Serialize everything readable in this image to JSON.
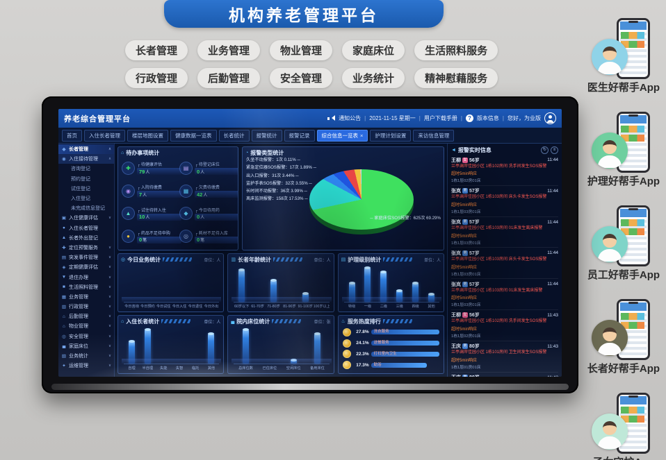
{
  "wall": {
    "banner_title": "机构养老管理平台",
    "pills_row1": [
      "长者管理",
      "业务管理",
      "物业管理",
      "家庭床位",
      "生活照料服务"
    ],
    "pills_row2": [
      "行政管理",
      "后勤管理",
      "安全管理",
      "业务统计",
      "精神慰藉服务"
    ]
  },
  "apps": [
    {
      "label": "医生好帮手App",
      "color": "#8fd3e8"
    },
    {
      "label": "护理好帮手App",
      "color": "#6fcf9f"
    },
    {
      "label": "员工好帮手App",
      "color": "#7fd4c8"
    },
    {
      "label": "长者好帮手App",
      "color": "#6b6a52"
    },
    {
      "label": "子女守护App",
      "color": "#bfe8d8"
    }
  ],
  "screen": {
    "topbar": {
      "title": "养老综合管理平台",
      "notice": "通知公告",
      "date": "2021-11-15 星期一",
      "manual": "用户下载手册",
      "version": "版本信息",
      "greeting": "您好，为业版",
      "sep": "|"
    },
    "tabs": [
      {
        "label": "首页"
      },
      {
        "label": "入住长者管理"
      },
      {
        "label": "楼层地图设置"
      },
      {
        "label": "健康数据一览表"
      },
      {
        "label": "长者统计"
      },
      {
        "label": "报警统计"
      },
      {
        "label": "报警记录"
      },
      {
        "label": "综合信息一览表",
        "active": true
      },
      {
        "label": "护理计划设置"
      },
      {
        "label": "来访信息管理"
      }
    ],
    "sidebar": [
      {
        "label": "长者管理",
        "icon": "◆",
        "type": "section",
        "chev": "∧"
      },
      {
        "label": "入住接待管理",
        "icon": "◉",
        "type": "group hl",
        "chev": "∧"
      },
      {
        "label": "咨询登记",
        "type": "sub"
      },
      {
        "label": "预约登记",
        "type": "sub"
      },
      {
        "label": "试住登记",
        "type": "sub"
      },
      {
        "label": "入住登记",
        "type": "sub"
      },
      {
        "label": "未完成信息登记",
        "type": "sub"
      },
      {
        "label": "入住健康评估",
        "icon": "▣",
        "type": "group",
        "chev": "∨"
      },
      {
        "label": "入住长者管理",
        "icon": "●",
        "type": "group",
        "chev": ""
      },
      {
        "label": "长者外出登记",
        "icon": "▲",
        "type": "group",
        "chev": ""
      },
      {
        "label": "定位预警服务",
        "icon": "✚",
        "type": "group",
        "chev": "∨"
      },
      {
        "label": "突发事件管理",
        "icon": "▤",
        "type": "group",
        "chev": "∨"
      },
      {
        "label": "定期健康评估",
        "icon": "◈",
        "type": "group",
        "chev": "∨"
      },
      {
        "label": "退住办理",
        "icon": "▼",
        "type": "group",
        "chev": "∨"
      },
      {
        "label": "生活照料管理",
        "icon": "■",
        "type": "group",
        "chev": "∨"
      },
      {
        "label": "业务管理",
        "icon": "▦",
        "type": "group",
        "chev": "∨"
      },
      {
        "label": "行政管理",
        "icon": "▥",
        "type": "group",
        "chev": "∨"
      },
      {
        "label": "后勤管理",
        "icon": "⌂",
        "type": "group",
        "chev": "∨"
      },
      {
        "label": "物业管理",
        "icon": "⌂",
        "type": "group",
        "chev": "∨"
      },
      {
        "label": "安全管理",
        "icon": "◎",
        "type": "group",
        "chev": "∨"
      },
      {
        "label": "家庭床位",
        "icon": "▄",
        "type": "group",
        "chev": "∨"
      },
      {
        "label": "业务统计",
        "icon": "▧",
        "type": "group",
        "chev": "∨"
      },
      {
        "label": "运维管理",
        "icon": "✦",
        "type": "group",
        "chev": "∨"
      }
    ],
    "todo_panel": {
      "title": "待办事项统计",
      "items": [
        {
          "icon": "✚",
          "color": "#3ce06a",
          "label": "待健康评估",
          "value": "79",
          "unit": "人"
        },
        {
          "icon": "▤",
          "color": "#bca7f5",
          "label": "待登记床位",
          "value": "0",
          "unit": "人"
        },
        {
          "icon": "◉",
          "color": "#b48ef0",
          "label": "入院待缴费",
          "value": "7",
          "unit": "人"
        },
        {
          "icon": "▦",
          "color": "#58c7f0",
          "label": "欠费待缴费",
          "value": "42",
          "unit": "人"
        },
        {
          "icon": "▲",
          "color": "#58e0c8",
          "label": "试住待转入住",
          "value": "10",
          "unit": "人"
        },
        {
          "icon": "◆",
          "color": "#58c7f0",
          "label": "今日待用药",
          "value": "0",
          "unit": "人"
        },
        {
          "icon": "●",
          "color": "#e8c23c",
          "label": "药品不足待申购",
          "value": "0",
          "unit": "笔"
        },
        {
          "icon": "◎",
          "color": "#9fb6e4",
          "label": "耗材不足待入库",
          "value": "0",
          "unit": "笔"
        }
      ]
    },
    "alarm_feed": {
      "title": "报警实时信息",
      "entries": [
        {
          "name": "王柳",
          "gender": "女",
          "age": "56岁",
          "alert": "兰亭澜岸佳园小区 1栋102房间 洗手间发生SOS报警",
          "sub": "超时5min响应",
          "loc": "1栋1层02房01床",
          "time": "11:44"
        },
        {
          "name": "张岚",
          "gender": "男",
          "age": "57岁",
          "alert": "兰亭澜岸佳园小区 1栋103房间 床头卡发生SOS报警",
          "sub": "超时5min响应",
          "loc": "1栋1层03房01床",
          "time": "11:44"
        },
        {
          "name": "张岚",
          "gender": "男",
          "age": "57岁",
          "alert": "兰亭澜岸佳园小区 1栋103房间 01床发生离床报警",
          "sub": "超时5min响应",
          "loc": "1栋1层03房01床",
          "time": "11:44"
        },
        {
          "name": "张岚",
          "gender": "男",
          "age": "57岁",
          "alert": "兰亭澜岸佳园小区 1栋103房间 床头卡发生SOS报警",
          "sub": "超时5min响应",
          "loc": "1栋1层03房01床",
          "time": "11:44"
        },
        {
          "name": "张岚",
          "gender": "男",
          "age": "57岁",
          "alert": "兰亭澜岸佳园小区 1栋103房间 01床发生离床报警",
          "sub": "超时5min响应",
          "loc": "1栋1层03房01床",
          "time": "11:44"
        },
        {
          "name": "王柳",
          "gender": "女",
          "age": "56岁",
          "alert": "兰亭澜岸佳园小区 1栋102房间 洗手间发生SOS报警",
          "sub": "超时5min响应",
          "loc": "1栋1层02房01床",
          "time": "11:43"
        },
        {
          "name": "王庆",
          "gender": "男",
          "age": "80岁",
          "alert": "兰亭澜岸佳园小区 1栋101房间 卫生间发生SOS报警",
          "sub": "超时5min响应",
          "loc": "1栋1层01房01床",
          "time": "11:43"
        },
        {
          "name": "王庆",
          "gender": "男",
          "age": "80岁",
          "alert": "兰亭澜岸佳园小区 1栋101房间 卫生间发生SOS报警",
          "sub": "",
          "loc": "",
          "time": "11:42"
        }
      ]
    }
  },
  "chart_data": [
    {
      "type": "pie",
      "title": "报警类型统计",
      "slices": [
        {
          "label": "家庭床位SOS报警",
          "count": "625次",
          "pct": 69.29,
          "color": "#3fe05f"
        },
        {
          "label": "离床监测报警",
          "count": "158次",
          "pct": 17.53,
          "color": "#2bd9cf"
        },
        {
          "label": "长时间不动报警",
          "count": "36次",
          "pct": 3.99,
          "color": "#2f86f0"
        },
        {
          "label": "监护手表SOS报警",
          "count": "32次",
          "pct": 3.55,
          "color": "#1f55e0"
        },
        {
          "label": "出入口报警",
          "count": "31次",
          "pct": 3.44,
          "color": "#e84545"
        },
        {
          "label": "紧急定位器SOS报警",
          "count": "17次",
          "pct": 1.89,
          "color": "#f0c23c"
        },
        {
          "label": "久坐不动报警",
          "count": "1次",
          "pct": 0.11,
          "color": "#c8d0e0"
        }
      ]
    },
    {
      "type": "bar",
      "title": "今日业务统计",
      "unit": "单位：人",
      "categories": [
        "今日咨询",
        "今日预约",
        "今日试住",
        "今日入住",
        "今日退住",
        "今日外出"
      ],
      "values": [
        0,
        0,
        0,
        0,
        0,
        0
      ],
      "ymax": 10
    },
    {
      "type": "bar",
      "title": "长者年龄统计",
      "unit": "单位：人",
      "categories": [
        "60岁以下",
        "61-70岁",
        "71-80岁",
        "81-90岁",
        "91-100岁",
        "100岁以上"
      ],
      "values": [
        12,
        0,
        8,
        0,
        3,
        0
      ],
      "ymax": 14
    },
    {
      "type": "bar",
      "title": "护理级别统计",
      "unit": "单位：人",
      "categories": [
        "特级",
        "一级",
        "二级",
        "三级",
        "四级",
        "其他"
      ],
      "values": [
        5,
        9,
        8,
        3,
        5,
        2
      ],
      "ymax": 10
    },
    {
      "type": "bar",
      "title": "入住长者统计",
      "unit": "单位：人",
      "categories": [
        "自理",
        "半自理",
        "失能",
        "失智",
        "临托",
        "其他"
      ],
      "values": [
        6,
        9,
        0,
        0,
        0,
        8
      ],
      "ymax": 10
    },
    {
      "type": "bar",
      "title": "院内床位统计",
      "unit": "单位：张",
      "categories": [
        "总床位数",
        "已住床位",
        "空闲床位",
        "备用床位"
      ],
      "values": [
        9,
        0,
        1,
        8
      ],
      "ymax": 10
    },
    {
      "type": "hbar",
      "title": "服务热度排行",
      "items": [
        {
          "label": "洗衣服务",
          "pct": 27.8
        },
        {
          "label": "送餐服务",
          "pct": 24.1
        },
        {
          "label": "打扫室内卫生",
          "pct": 22.3
        },
        {
          "label": "助浴",
          "pct": 17.3
        }
      ],
      "max_pct": 30
    }
  ]
}
